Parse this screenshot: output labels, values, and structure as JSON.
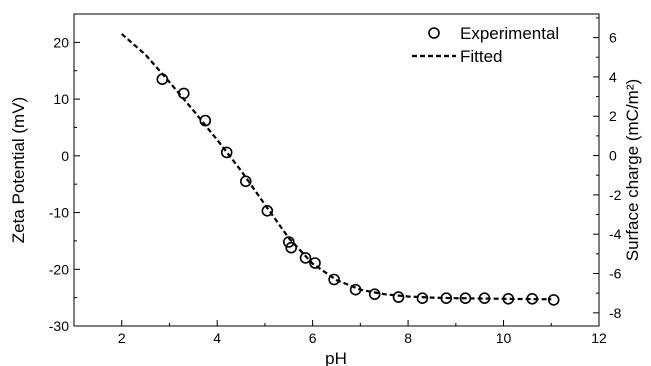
{
  "chart_data": {
    "type": "scatter",
    "xlabel": "pH",
    "ylabel": "Zeta Potential (mV)",
    "y2label": "Surface charge (mC/m²)",
    "xlim": [
      1,
      12
    ],
    "ylim": [
      -30,
      25
    ],
    "y2lim": [
      -8.67,
      7.2
    ],
    "x_ticks": [
      2,
      4,
      6,
      8,
      10,
      12
    ],
    "y_ticks": [
      -30,
      -20,
      -10,
      0,
      10,
      20
    ],
    "y2_ticks": [
      -8,
      -6,
      -4,
      -2,
      0,
      2,
      4,
      6
    ],
    "legend_position": "top-right",
    "series": [
      {
        "name": "Experimental",
        "style": "open-circle",
        "x": [
          2.85,
          3.3,
          3.75,
          4.2,
          4.6,
          5.05,
          5.5,
          5.55,
          5.85,
          6.05,
          6.45,
          6.9,
          7.3,
          7.8,
          8.3,
          8.8,
          9.2,
          9.6,
          10.1,
          10.6,
          11.05
        ],
        "y": [
          13.5,
          11.0,
          6.2,
          0.6,
          -4.5,
          -9.7,
          -15.2,
          -16.2,
          -18.0,
          -18.9,
          -21.8,
          -23.6,
          -24.4,
          -24.9,
          -25.1,
          -25.1,
          -25.1,
          -25.1,
          -25.2,
          -25.2,
          -25.4
        ]
      },
      {
        "name": "Fitted",
        "style": "dashed-line",
        "x": [
          2.0,
          2.5,
          3.0,
          3.5,
          4.0,
          4.5,
          5.0,
          5.5,
          6.0,
          6.5,
          7.0,
          7.5,
          8.0,
          8.5,
          9.0,
          10.0,
          11.0
        ],
        "y": [
          21.5,
          17.8,
          13.0,
          8.0,
          2.8,
          -2.6,
          -8.6,
          -14.5,
          -19.0,
          -21.9,
          -23.6,
          -24.4,
          -24.8,
          -25.0,
          -25.1,
          -25.2,
          -25.3
        ]
      }
    ]
  }
}
